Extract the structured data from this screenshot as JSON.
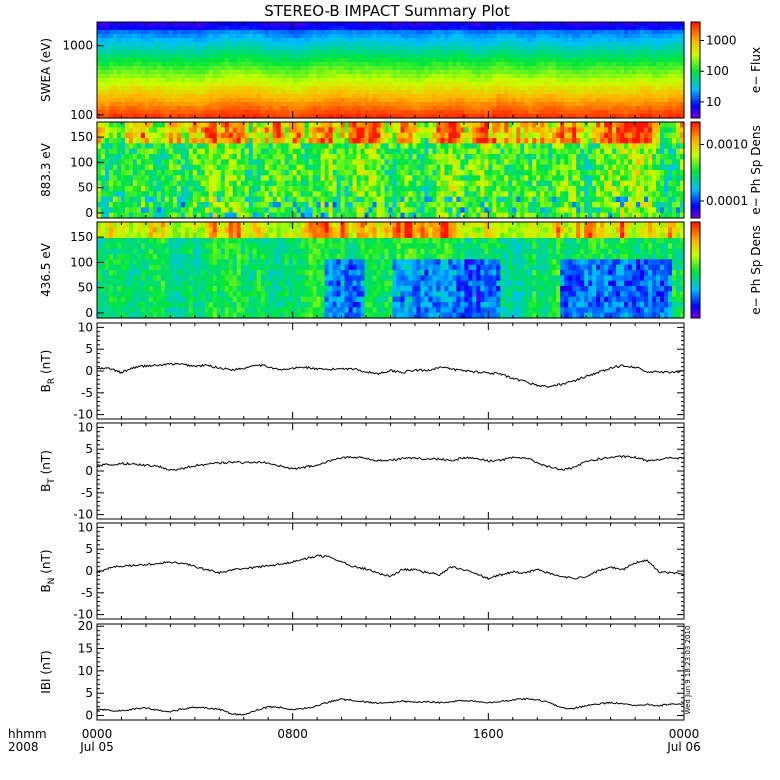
{
  "title": "STEREO-B IMPACT Summary Plot",
  "timestamp": "Wed Jun 9 18:23:03 2010",
  "time_axis": {
    "corner_label_line1": "hhmm",
    "corner_label_line2": "2008",
    "ticks": [
      {
        "hour": 0,
        "line1": "0000",
        "line2": "Jul 05"
      },
      {
        "hour": 8,
        "line1": "0800",
        "line2": ""
      },
      {
        "hour": 16,
        "line1": "1600",
        "line2": ""
      },
      {
        "hour": 24,
        "line1": "0000",
        "line2": "Jul 06"
      }
    ],
    "range_hours": [
      0,
      24
    ]
  },
  "chart_data": [
    {
      "type": "heatmap",
      "name": "swea",
      "ylabel": "SWEA (eV)",
      "yscale": "log",
      "ylim": [
        90,
        2200
      ],
      "yticks": [
        {
          "value": 1000,
          "label": "1000"
        },
        {
          "value": 100,
          "label": "100"
        }
      ],
      "colorbar": {
        "label": "e− Flux",
        "scale": "log",
        "range": [
          3,
          4000
        ],
        "ticks": [
          {
            "value": 1000,
            "label": "1000"
          },
          {
            "value": 100,
            "label": "100"
          },
          {
            "value": 10,
            "label": "10"
          }
        ]
      }
    },
    {
      "type": "heatmap",
      "name": "pad883",
      "ylabel": "883.3 eV",
      "yscale": "linear",
      "ylim": [
        -10,
        180
      ],
      "yticks": [
        {
          "value": 150,
          "label": "150"
        },
        {
          "value": 100,
          "label": "100"
        },
        {
          "value": 50,
          "label": "50"
        },
        {
          "value": 0,
          "label": "0"
        }
      ],
      "colorbar": {
        "label": "e− Ph Sp Dens",
        "scale": "log",
        "range": [
          5e-05,
          0.0025
        ],
        "ticks": [
          {
            "value": 0.001,
            "label": "0.0010"
          },
          {
            "value": 0.0001,
            "label": "0.0001"
          }
        ]
      }
    },
    {
      "type": "heatmap",
      "name": "pad436",
      "ylabel": "436.5 eV",
      "yscale": "linear",
      "ylim": [
        -10,
        180
      ],
      "yticks": [
        {
          "value": 150,
          "label": "150"
        },
        {
          "value": 100,
          "label": "100"
        },
        {
          "value": 50,
          "label": "50"
        },
        {
          "value": 0,
          "label": "0"
        }
      ],
      "colorbar": {
        "label": "e− Ph Sp Dens",
        "scale": "linear",
        "range": [
          0,
          1
        ],
        "ticks": []
      }
    },
    {
      "type": "line",
      "name": "br",
      "ylabel_main": "B",
      "ylabel_sub": "R",
      "ylabel_unit": " (nT)",
      "ylim": [
        -11,
        11
      ],
      "yticks": [
        10,
        5,
        0,
        -5,
        -10
      ],
      "series": [
        {
          "x": [
            0,
            0.5,
            1,
            1.5,
            2,
            2.5,
            3,
            3.5,
            4,
            4.5,
            5,
            5.5,
            6,
            6.5,
            7,
            7.5,
            8,
            8.5,
            9,
            9.5,
            10,
            10.5,
            11,
            11.5,
            12,
            12.5,
            13,
            13.5,
            14,
            14.5,
            15,
            15.5,
            16,
            16.5,
            17,
            17.5,
            18,
            18.5,
            19,
            19.5,
            20,
            20.5,
            21,
            21.5,
            22,
            22.5,
            23,
            23.5,
            24
          ],
          "y": [
            0.5,
            0.6,
            -0.4,
            0.8,
            1.2,
            1.3,
            1.6,
            1.5,
            1.1,
            1.3,
            0.7,
            0.3,
            0.6,
            1.5,
            1.0,
            0.2,
            0.6,
            0.9,
            0.4,
            0.3,
            0.6,
            0.5,
            -0.2,
            -0.6,
            0.1,
            -0.3,
            0.2,
            0.1,
            0.9,
            0.4,
            0.1,
            -0.2,
            -0.4,
            -0.7,
            -1.8,
            -2.4,
            -3.3,
            -3.6,
            -3.0,
            -2.3,
            -1.2,
            -0.3,
            0.6,
            1.3,
            0.9,
            -0.3,
            -0.2,
            -0.4,
            0.1
          ]
        }
      ]
    },
    {
      "type": "line",
      "name": "bt",
      "ylabel_main": "B",
      "ylabel_sub": "T",
      "ylabel_unit": " (nT)",
      "ylim": [
        -11,
        11
      ],
      "yticks": [
        10,
        5,
        0,
        -5,
        -10
      ],
      "series": [
        {
          "x": [
            0,
            0.5,
            1,
            1.5,
            2,
            2.5,
            3,
            3.5,
            4,
            4.5,
            5,
            5.5,
            6,
            6.5,
            7,
            7.5,
            8,
            8.5,
            9,
            9.5,
            10,
            10.5,
            11,
            11.5,
            12,
            12.5,
            13,
            13.5,
            14,
            14.5,
            15,
            15.5,
            16,
            16.5,
            17,
            17.5,
            18,
            18.5,
            19,
            19.5,
            20,
            20.5,
            21,
            21.5,
            22,
            22.5,
            23,
            23.5,
            24
          ],
          "y": [
            1.2,
            1.5,
            1.7,
            1.6,
            1.3,
            1.1,
            0.2,
            0.6,
            1.2,
            1.6,
            1.8,
            2.0,
            1.9,
            2.1,
            1.8,
            1.1,
            0.5,
            0.9,
            1.4,
            2.4,
            3.1,
            3.2,
            2.9,
            2.3,
            2.5,
            2.9,
            3.0,
            2.7,
            2.8,
            2.4,
            3.1,
            2.9,
            2.3,
            2.5,
            3.0,
            3.1,
            1.9,
            0.9,
            0.3,
            0.7,
            2.2,
            2.7,
            3.1,
            3.3,
            3.1,
            2.4,
            2.7,
            3.0,
            2.9
          ]
        }
      ]
    },
    {
      "type": "line",
      "name": "bn",
      "ylabel_main": "B",
      "ylabel_sub": "N",
      "ylabel_unit": " (nT)",
      "ylim": [
        -11,
        11
      ],
      "yticks": [
        10,
        5,
        0,
        -5,
        -10
      ],
      "series": [
        {
          "x": [
            0,
            0.5,
            1,
            1.5,
            2,
            2.5,
            3,
            3.5,
            4,
            4.5,
            5,
            5.5,
            6,
            6.5,
            7,
            7.5,
            8,
            8.5,
            9,
            9.5,
            10,
            10.5,
            11,
            11.5,
            12,
            12.5,
            13,
            13.5,
            14,
            14.5,
            15,
            15.5,
            16,
            16.5,
            17,
            17.5,
            18,
            18.5,
            19,
            19.5,
            20,
            20.5,
            21,
            21.5,
            22,
            22.5,
            23,
            23.5,
            24
          ],
          "y": [
            -0.4,
            0.8,
            1.1,
            1.3,
            1.4,
            1.8,
            2.0,
            1.8,
            1.0,
            0.3,
            -0.4,
            0.3,
            0.6,
            0.8,
            1.2,
            1.6,
            2.1,
            2.8,
            3.5,
            3.2,
            2.0,
            1.0,
            0.5,
            -0.5,
            -1.2,
            0.4,
            0.2,
            -0.4,
            -0.8,
            0.9,
            0.3,
            -0.6,
            -1.8,
            -0.9,
            -0.2,
            -0.4,
            0.4,
            -0.6,
            -1.3,
            -1.6,
            -1.5,
            0.1,
            0.9,
            0.3,
            1.9,
            2.4,
            -0.3,
            -0.4,
            -0.8
          ]
        }
      ]
    },
    {
      "type": "line",
      "name": "bmag",
      "ylabel_main": "IBI",
      "ylabel_sub": "",
      "ylabel_unit": " (nT)",
      "ylim": [
        -1,
        20.5
      ],
      "yticks": [
        20,
        15,
        10,
        5,
        0
      ],
      "series": [
        {
          "x": [
            0,
            0.5,
            1,
            1.5,
            2,
            2.5,
            3,
            3.5,
            4,
            4.5,
            5,
            5.5,
            6,
            6.5,
            7,
            7.5,
            8,
            8.5,
            9,
            9.5,
            10,
            10.5,
            11,
            11.5,
            12,
            12.5,
            13,
            13.5,
            14,
            14.5,
            15,
            15.5,
            16,
            16.5,
            17,
            17.5,
            18,
            18.5,
            19,
            19.5,
            20,
            20.5,
            21,
            21.5,
            22,
            22.5,
            23,
            23.5,
            24
          ],
          "y": [
            1.4,
            1.2,
            1.0,
            1.5,
            1.7,
            1.2,
            0.9,
            1.5,
            1.9,
            1.7,
            1.4,
            0.4,
            0.2,
            1.2,
            1.9,
            1.8,
            1.3,
            1.6,
            2.2,
            3.1,
            3.6,
            3.4,
            3.0,
            2.8,
            2.9,
            3.2,
            3.0,
            3.1,
            2.9,
            3.1,
            3.4,
            3.2,
            2.9,
            3.1,
            3.5,
            3.7,
            3.5,
            2.9,
            1.7,
            1.6,
            2.2,
            2.6,
            2.9,
            2.7,
            2.3,
            2.5,
            2.2,
            2.6,
            2.6
          ]
        }
      ]
    }
  ]
}
